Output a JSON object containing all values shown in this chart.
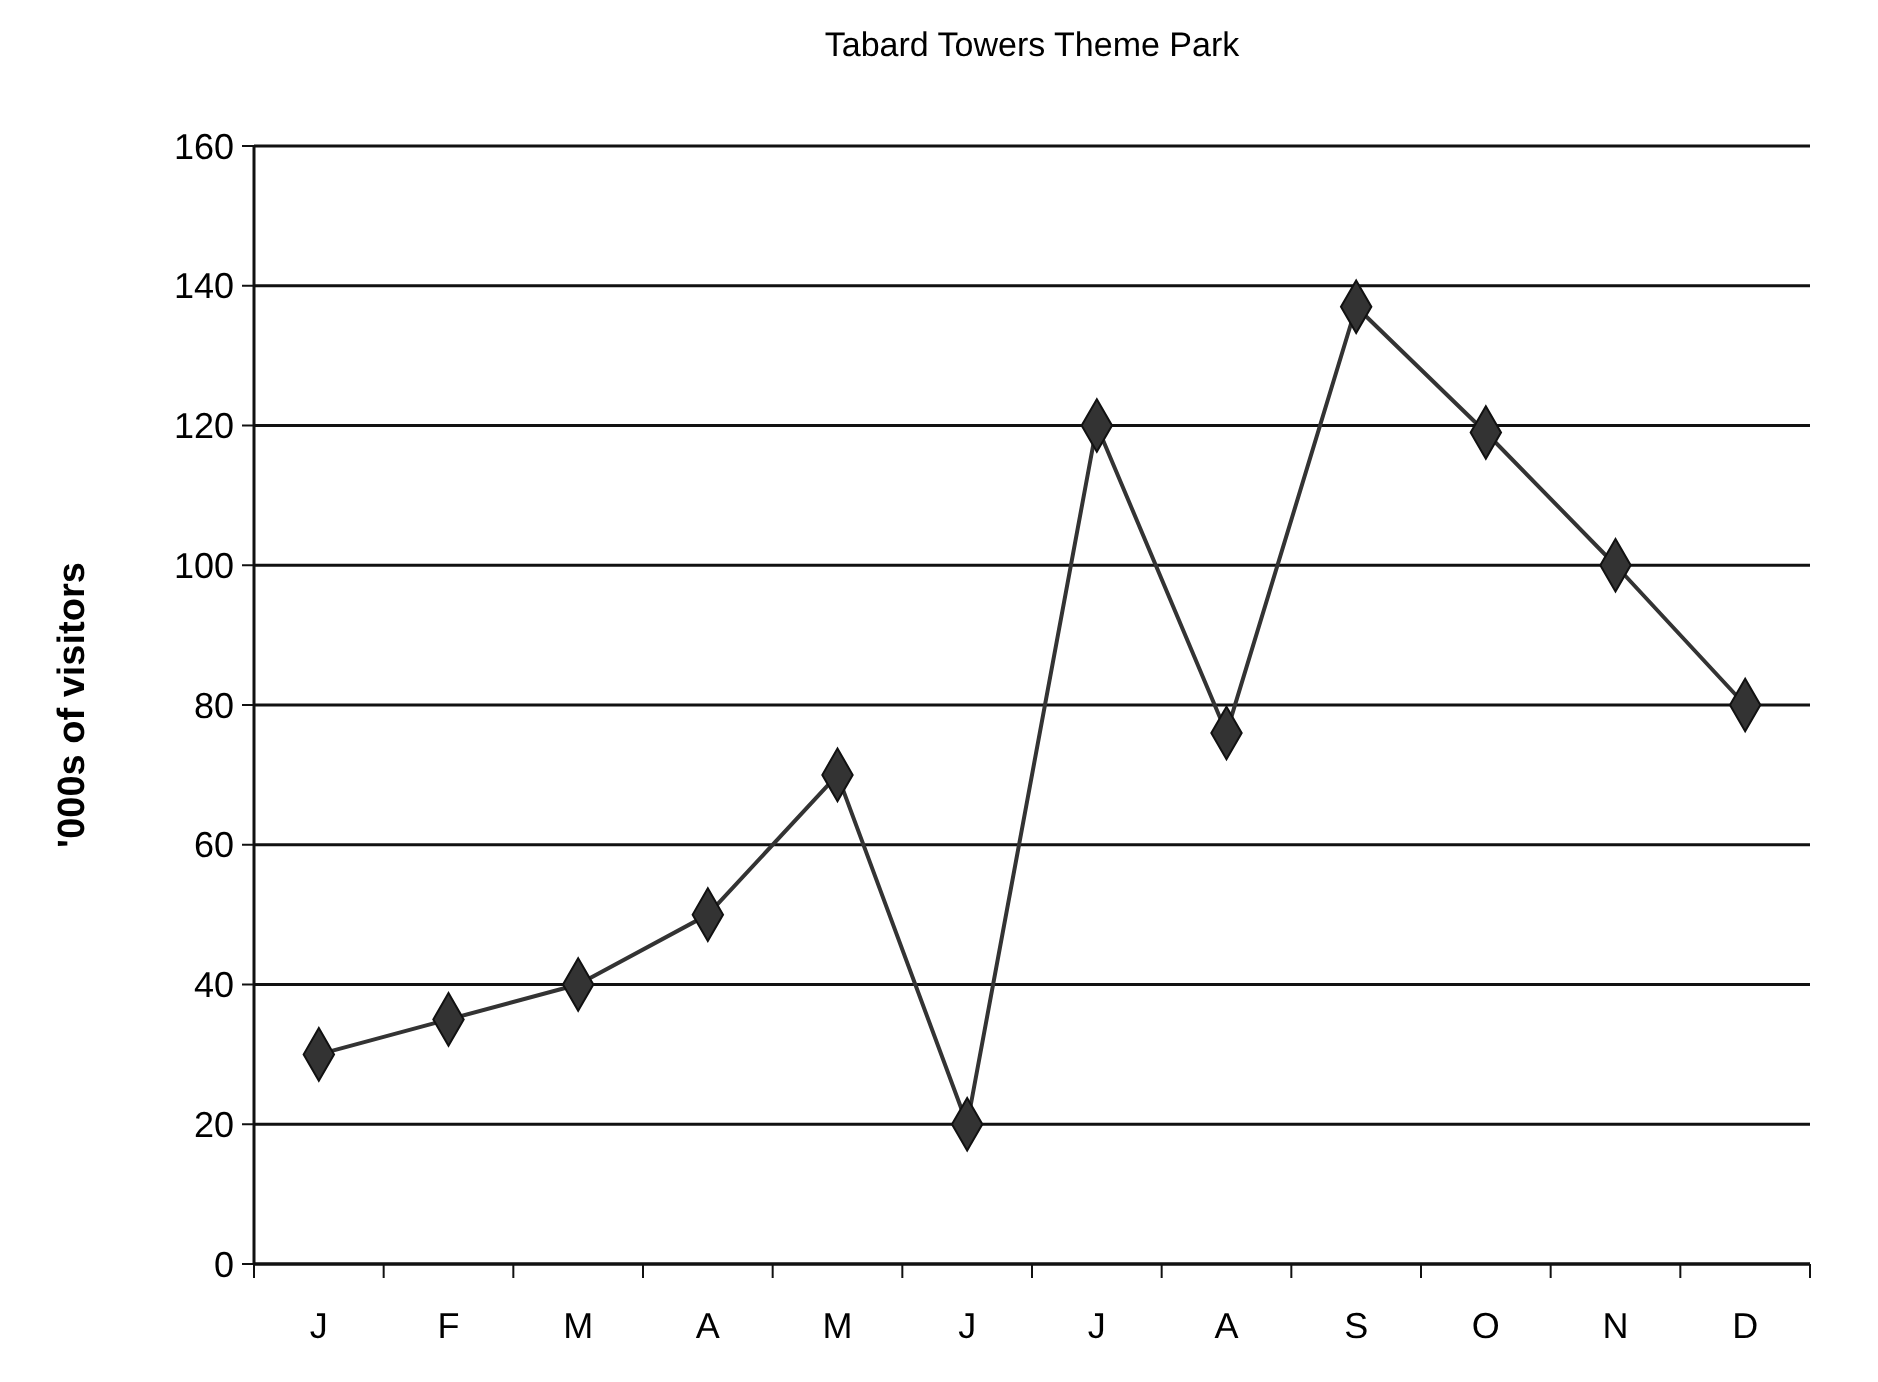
{
  "chart_data": {
    "type": "line",
    "title": "Tabard Towers Theme Park",
    "ylabel": "'000s of visitors",
    "categories": [
      "J",
      "F",
      "M",
      "A",
      "M",
      "J",
      "J",
      "A",
      "S",
      "O",
      "N",
      "D"
    ],
    "series": [
      {
        "color": "#333333",
        "values": [
          30,
          35,
          40,
          50,
          70,
          20,
          120,
          76,
          137,
          119,
          100,
          80
        ]
      }
    ],
    "ylim": [
      0,
      160
    ],
    "yticks": [
      0,
      20,
      40,
      60,
      80,
      100,
      120,
      140,
      160
    ],
    "grid": "y",
    "marker": "diamond",
    "line_style": "solid"
  }
}
